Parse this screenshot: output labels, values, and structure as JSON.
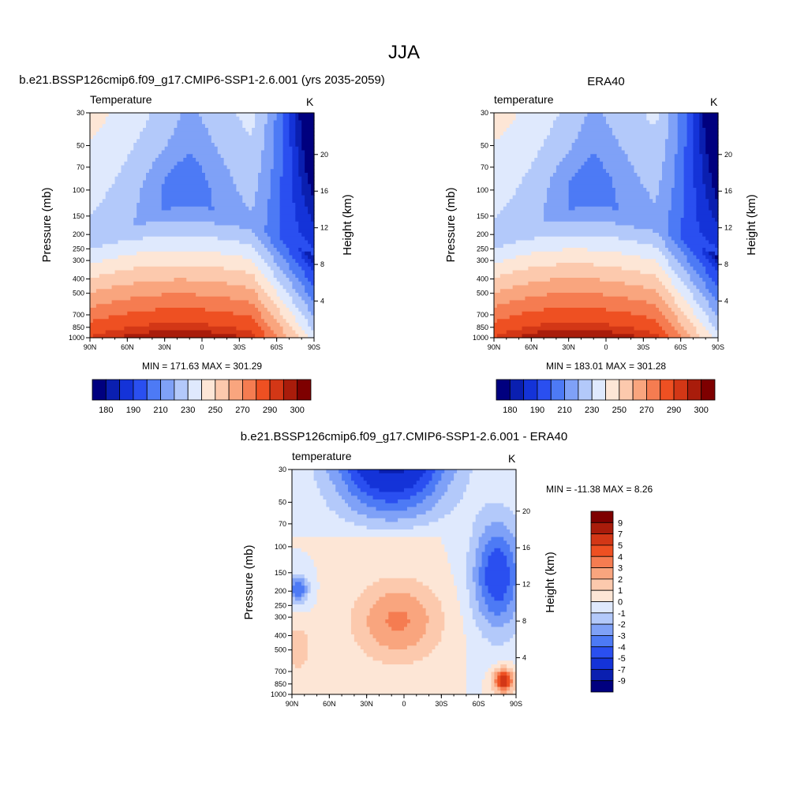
{
  "figure": {
    "title": "JJA"
  },
  "palettes": {
    "temperature": [
      "#00007f",
      "#0a1fb0",
      "#1433d8",
      "#2a4ff0",
      "#4d7af5",
      "#7fa1f7",
      "#b3c9fa",
      "#dfe9fd",
      "#fde6d6",
      "#fcc9ad",
      "#f9a57e",
      "#f57c51",
      "#ee5022",
      "#d33716",
      "#a91c0b",
      "#7e0000"
    ],
    "difference": [
      "#00007f",
      "#0a1fb0",
      "#1433d8",
      "#2a4ff0",
      "#4d7af5",
      "#7fa1f7",
      "#b3c9fa",
      "#dfe9fd",
      "#fde6d6",
      "#fcc9ad",
      "#f9a57e",
      "#f57c51",
      "#ee5022",
      "#d33716",
      "#a91c0b",
      "#7e0000"
    ]
  },
  "panels": {
    "model": {
      "title": "b.e21.BSSP126cmip6.f09_g17.CMIP6-SSP1-2.6.001 (yrs 2035-2059)",
      "var_label": "Temperature",
      "units": "K",
      "ylabel": "Pressure (mb)",
      "ylabel_right": "Height (km)",
      "stats": "MIN = 171.63  MAX = 301.29",
      "colorbar_labels": [
        "180",
        "190",
        "210",
        "230",
        "250",
        "270",
        "290",
        "300"
      ]
    },
    "obs": {
      "title": "ERA40",
      "var_label": "temperature",
      "units": "K",
      "ylabel": "Pressure (mb)",
      "ylabel_right": "Height (km)",
      "stats": "MIN = 183.01  MAX = 301.28",
      "colorbar_labels": [
        "180",
        "190",
        "210",
        "230",
        "250",
        "270",
        "290",
        "300"
      ]
    },
    "diff": {
      "title": "b.e21.BSSP126cmip6.f09_g17.CMIP6-SSP1-2.6.001 - ERA40",
      "var_label": "temperature",
      "units": "K",
      "ylabel": "Pressure (mb)",
      "ylabel_right": "Height (km)",
      "stats": "MIN = -11.38  MAX =   8.26",
      "colorbar_labels": [
        "9",
        "7",
        "5",
        "4",
        "3",
        "2",
        "1",
        "0",
        "-1",
        "-2",
        "-3",
        "-4",
        "-5",
        "-7",
        "-9"
      ]
    }
  },
  "chart_data": [
    {
      "type": "heatmap",
      "title": "b.e21.BSSP126cmip6.f09_g17.CMIP6-SSP1-2.6.001 (yrs 2035-2059)",
      "field": "Temperature",
      "units": "K",
      "x_ticks": [
        "90N",
        "60N",
        "30N",
        "0",
        "30S",
        "60S",
        "90S"
      ],
      "y_ticks": [
        "30",
        "50",
        "70",
        "100",
        "150",
        "200",
        "250",
        "300",
        "400",
        "500",
        "700",
        "850",
        "1000"
      ],
      "y2_ticks": [
        "20",
        "16",
        "12",
        "8",
        "4"
      ],
      "contour_levels": [
        180,
        185,
        190,
        200,
        210,
        220,
        230,
        240,
        250,
        260,
        270,
        280,
        290,
        295,
        300
      ],
      "min": 171.63,
      "max": 301.29
    },
    {
      "type": "heatmap",
      "title": "ERA40",
      "field": "temperature",
      "units": "K",
      "x_ticks": [
        "90N",
        "60N",
        "30N",
        "0",
        "30S",
        "60S",
        "90S"
      ],
      "y_ticks": [
        "30",
        "50",
        "70",
        "100",
        "150",
        "200",
        "250",
        "300",
        "400",
        "500",
        "700",
        "850",
        "1000"
      ],
      "y2_ticks": [
        "20",
        "16",
        "12",
        "8",
        "4"
      ],
      "contour_levels": [
        180,
        185,
        190,
        200,
        210,
        220,
        230,
        240,
        250,
        260,
        270,
        280,
        290,
        295,
        300
      ],
      "min": 183.01,
      "max": 301.28
    },
    {
      "type": "heatmap",
      "title": "b.e21.BSSP126cmip6.f09_g17.CMIP6-SSP1-2.6.001 - ERA40",
      "field": "temperature",
      "units": "K",
      "x_ticks": [
        "90N",
        "60N",
        "30N",
        "0",
        "30S",
        "60S",
        "90S"
      ],
      "y_ticks": [
        "30",
        "50",
        "70",
        "100",
        "150",
        "200",
        "250",
        "300",
        "400",
        "500",
        "700",
        "850",
        "1000"
      ],
      "y2_ticks": [
        "20",
        "16",
        "12",
        "8",
        "4"
      ],
      "contour_levels": [
        -9,
        -7,
        -5,
        -4,
        -3,
        -2,
        -1,
        0,
        1,
        2,
        3,
        4,
        5,
        7,
        9
      ],
      "min": -11.38,
      "max": 8.26
    }
  ]
}
